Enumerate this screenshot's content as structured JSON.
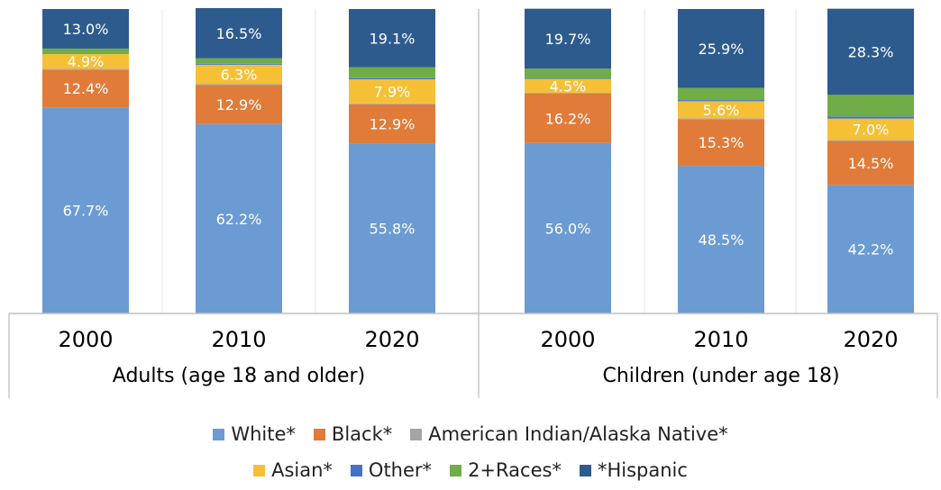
{
  "chart_data": {
    "type": "bar",
    "stacked": true,
    "ylim": [
      0,
      100
    ],
    "grid": false,
    "legend_position": "bottom",
    "groups": [
      {
        "label": "Adults (age 18 and older)",
        "categories": [
          "2000",
          "2010",
          "2020"
        ]
      },
      {
        "label": "Children (under age 18)",
        "categories": [
          "2000",
          "2010",
          "2020"
        ]
      }
    ],
    "categories": [
      "2000",
      "2010",
      "2020",
      "2000",
      "2010",
      "2020"
    ],
    "series": [
      {
        "name": "White*",
        "color": "#6b9bd2",
        "values": [
          67.7,
          62.2,
          55.8,
          56.0,
          48.5,
          42.2
        ],
        "labels": [
          "67.7%",
          "62.2%",
          "55.8%",
          "56.0%",
          "48.5%",
          "42.2%"
        ]
      },
      {
        "name": "Black*",
        "color": "#e07b39",
        "values": [
          12.4,
          12.9,
          12.9,
          16.2,
          15.3,
          14.5
        ],
        "labels": [
          "12.4%",
          "12.9%",
          "12.9%",
          "16.2%",
          "15.3%",
          "14.5%"
        ]
      },
      {
        "name": "American Indian/Alaska Native*",
        "color": "#a5a5a5",
        "values": [
          0.3,
          0.3,
          0.3,
          0.3,
          0.3,
          0.3
        ],
        "labels": [
          "",
          "",
          "",
          "",
          "",
          ""
        ]
      },
      {
        "name": "Asian*",
        "color": "#f5c036",
        "values": [
          4.9,
          6.3,
          7.9,
          4.5,
          5.6,
          7.0
        ],
        "labels": [
          "4.9%",
          "6.3%",
          "7.9%",
          "4.5%",
          "5.6%",
          "7.0%"
        ]
      },
      {
        "name": "Other*",
        "color": "#4472c4",
        "values": [
          0.2,
          0.3,
          0.4,
          0.2,
          0.4,
          0.7
        ],
        "labels": [
          "",
          "",
          "",
          "",
          "",
          ""
        ]
      },
      {
        "name": "2+Races*",
        "color": "#70ad47",
        "values": [
          1.5,
          1.8,
          3.6,
          3.2,
          4.0,
          7.1
        ],
        "labels": [
          "",
          "",
          "",
          "",
          "",
          ""
        ]
      },
      {
        "name": "*Hispanic",
        "color": "#2e5b8e",
        "values": [
          13.0,
          16.5,
          19.1,
          19.7,
          25.9,
          28.3
        ],
        "labels": [
          "13.0%",
          "16.5%",
          "19.1%",
          "19.7%",
          "25.9%",
          "28.3%"
        ]
      }
    ]
  }
}
